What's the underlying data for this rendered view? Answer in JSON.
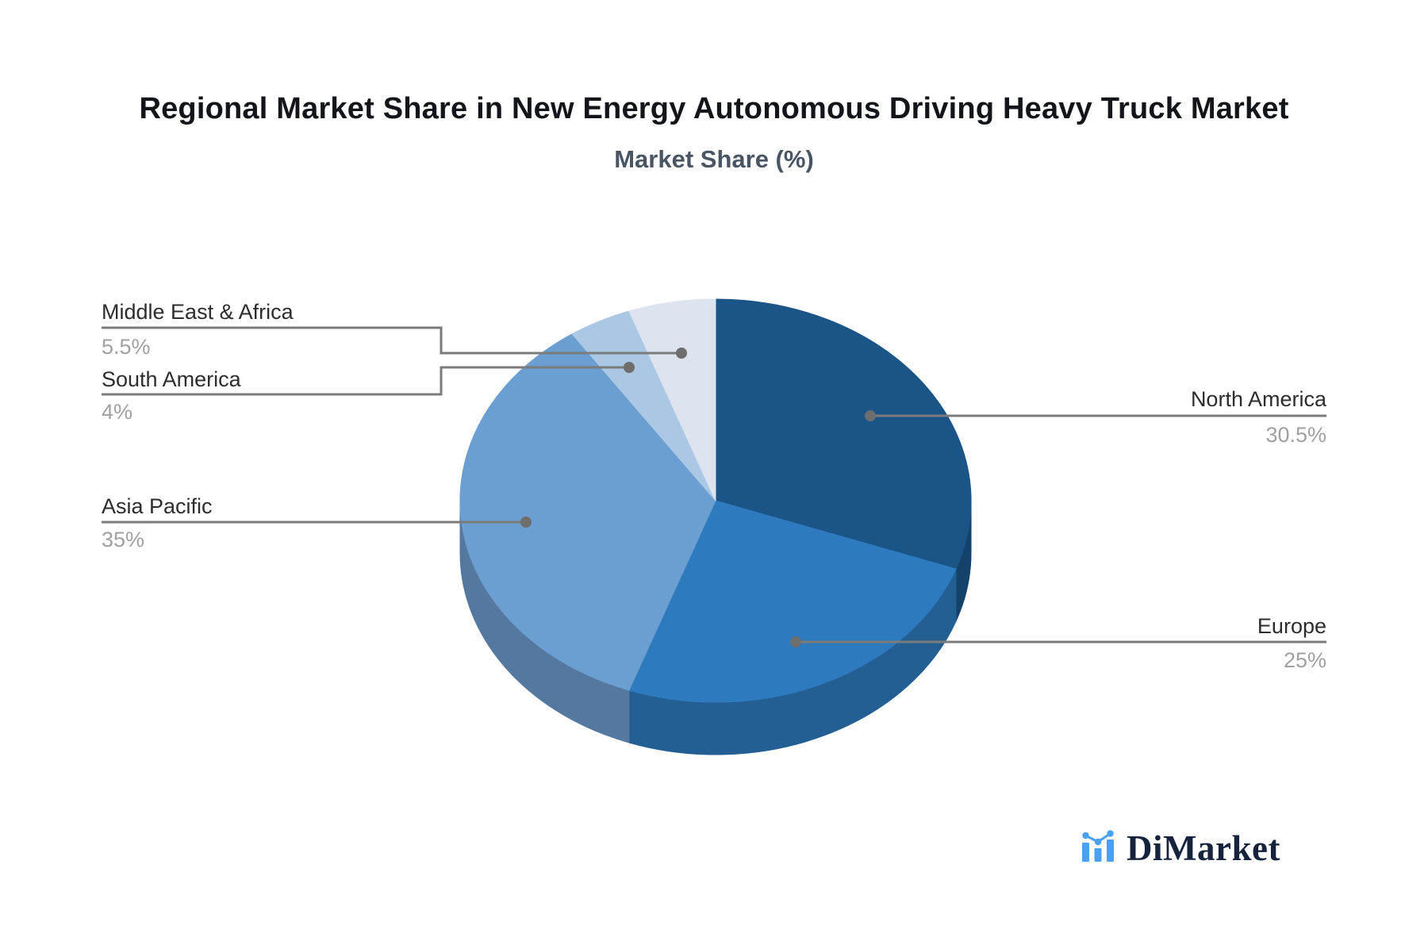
{
  "page": {
    "background": "#ffffff"
  },
  "header": {
    "title": "Regional Market Share in New Energy Autonomous Driving Heavy Truck Market",
    "subtitle": "Market Share (%)"
  },
  "brand": {
    "name": "DiMarket",
    "icon": "bar-chart-logo-icon",
    "icon_color": "#4aa0f2",
    "text_color": "#17233c"
  },
  "chart_data": {
    "type": "pie",
    "style": "3d-pie",
    "title": "Regional Market Share in New Energy Autonomous Driving Heavy Truck Market",
    "subtitle": "Market Share (%)",
    "unit": "%",
    "start_angle": "12-oclock",
    "direction": "clockwise",
    "legend_position": "none",
    "categories": [
      "North America",
      "Europe",
      "Asia Pacific",
      "South America",
      "Middle East & Africa"
    ],
    "values": [
      30.5,
      25,
      35,
      4,
      5.5
    ],
    "slices": [
      {
        "label": "North America",
        "value": 30.5,
        "display": "30.5%",
        "color": "#1b5486",
        "side_color": "#154269",
        "label_side": "right"
      },
      {
        "label": "Europe",
        "value": 25,
        "display": "25%",
        "color": "#2e7abe",
        "side_color": "#245f94",
        "label_side": "right"
      },
      {
        "label": "Asia Pacific",
        "value": 35,
        "display": "35%",
        "color": "#6b9ed1",
        "side_color": "#54789f",
        "label_side": "left"
      },
      {
        "label": "South America",
        "value": 4,
        "display": "4%",
        "color": "#aac7e3",
        "side_color": "#8aa8c6",
        "label_side": "left"
      },
      {
        "label": "Middle East & Africa",
        "value": 5.5,
        "display": "5.5%",
        "color": "#dde4f0",
        "side_color": "#b9c4d6",
        "label_side": "left"
      }
    ],
    "leader_line_color": "#7b7b7b",
    "leader_dot_color": "#6e6e6e",
    "label_text_color": "#2d2d2d",
    "value_text_color": "#a0a0a0"
  }
}
